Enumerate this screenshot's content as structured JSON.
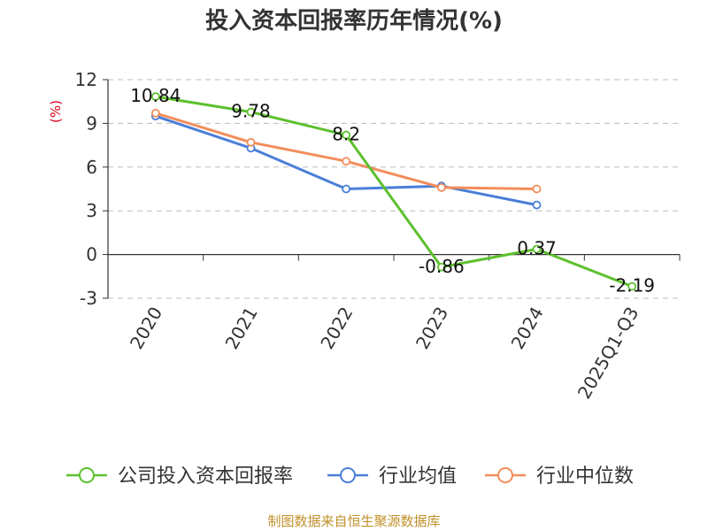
{
  "chart_data": {
    "type": "line",
    "title": "投入资本回报率历年情况(%)",
    "ylabel": "(%)",
    "xlabel": "",
    "ylim": [
      -3,
      12
    ],
    "yticks": [
      12,
      9,
      6,
      3,
      0,
      -3
    ],
    "categories": [
      "2020",
      "2021",
      "2022",
      "2023",
      "2024",
      "2025Q1-Q3"
    ],
    "series": [
      {
        "name": "公司投入资本回报率",
        "color": "#5dc02e",
        "values": [
          10.84,
          9.78,
          8.2,
          -0.86,
          0.37,
          -2.19
        ],
        "labels": [
          "10.84",
          "9.78",
          "8.2",
          "-0.86",
          "0.37",
          "-2.19"
        ]
      },
      {
        "name": "行业均值",
        "color": "#4a7fd8",
        "values": [
          9.5,
          7.3,
          4.5,
          4.7,
          3.4,
          null
        ]
      },
      {
        "name": "行业中位数",
        "color": "#f28d5b",
        "values": [
          9.7,
          7.7,
          6.4,
          4.6,
          4.5,
          null
        ]
      }
    ],
    "legend_position": "bottom",
    "grid": true
  },
  "footer": {
    "source": "制图数据来自恒生聚源数据库"
  }
}
